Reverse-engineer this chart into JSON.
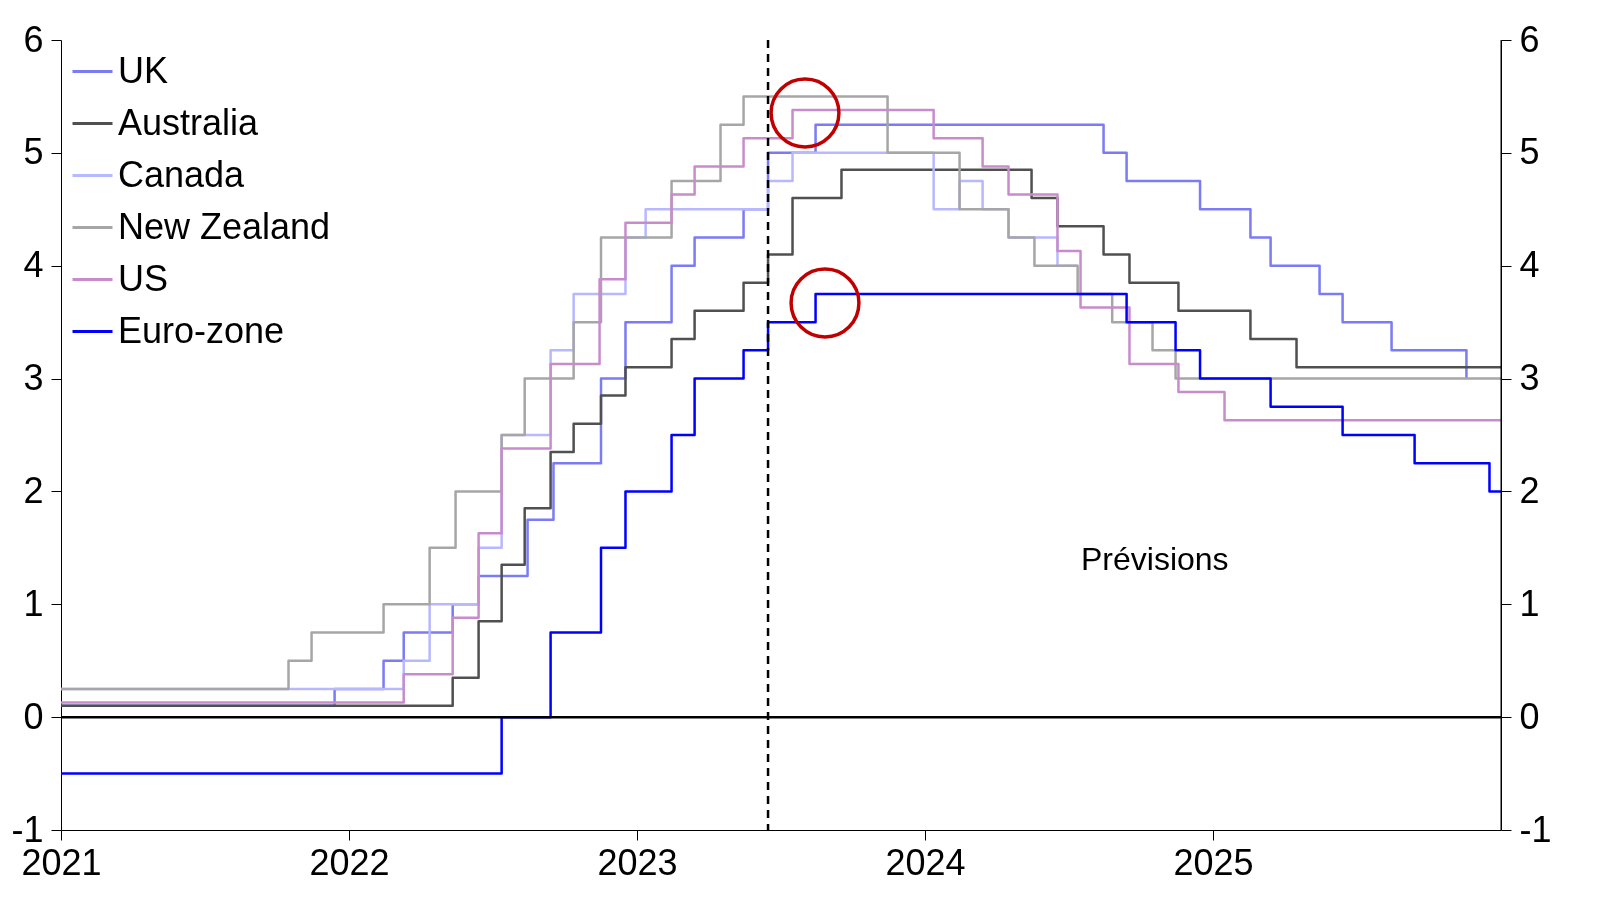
{
  "chart_data": {
    "type": "step",
    "xlim": [
      2021,
      2026
    ],
    "xticks": [
      2021,
      2022,
      2023,
      2024,
      2025
    ],
    "ylim": [
      -1,
      6
    ],
    "yticks": [
      -1,
      0,
      1,
      2,
      3,
      4,
      5,
      6
    ],
    "y2lim": [
      -1,
      6
    ],
    "y2ticks": [
      -1,
      0,
      1,
      2,
      3,
      4,
      5,
      6
    ],
    "grid": false,
    "legend": "top left",
    "line_style": "solid",
    "marker": "none",
    "annotations": [
      "Prévisions"
    ],
    "ref_lines": [
      {
        "axis": "x",
        "value": 2023.455,
        "color": "#000000",
        "line_style": "dashed"
      },
      {
        "axis": "y",
        "value": 0,
        "color": "#000000",
        "line_style": "solid"
      }
    ],
    "series": [
      {
        "name": "UK",
        "color": "#7b7bf5",
        "x": [
          2021,
          2021.95,
          2022.12,
          2022.19,
          2022.36,
          2022.45,
          2022.62,
          2022.71,
          2022.875,
          2022.96,
          2023.12,
          2023.2,
          2023.37,
          2023.455,
          2023.62,
          2024.62,
          2024.7,
          2024.955,
          2025.13,
          2025.2,
          2025.37,
          2025.45,
          2025.62,
          2025.88
        ],
        "values": [
          0.1,
          0.25,
          0.5,
          0.75,
          1.0,
          1.25,
          1.75,
          2.25,
          3.0,
          3.5,
          4.0,
          4.25,
          4.5,
          5.0,
          5.25,
          5.0,
          4.75,
          4.5,
          4.25,
          4.0,
          3.75,
          3.5,
          3.25,
          3.0
        ]
      },
      {
        "name": "Australia",
        "color": "#505050",
        "x": [
          2021,
          2022.36,
          2022.45,
          2022.53,
          2022.61,
          2022.7,
          2022.78,
          2022.875,
          2022.96,
          2023.12,
          2023.2,
          2023.37,
          2023.455,
          2023.54,
          2023.71,
          2024.37,
          2024.46,
          2024.62,
          2024.71,
          2024.88,
          2025.13,
          2025.29,
          2026
        ],
        "values": [
          0.1,
          0.35,
          0.85,
          1.35,
          1.85,
          2.35,
          2.6,
          2.85,
          3.1,
          3.35,
          3.6,
          3.85,
          4.1,
          4.6,
          4.85,
          4.6,
          4.35,
          4.1,
          3.85,
          3.6,
          3.35,
          3.1,
          3.1
        ]
      },
      {
        "name": "Canada",
        "color": "#b8b8ff",
        "x": [
          2021,
          2022.19,
          2022.28,
          2022.45,
          2022.53,
          2022.7,
          2022.78,
          2022.96,
          2023.03,
          2023.455,
          2023.54,
          2024.03,
          2024.12,
          2024.2,
          2024.29,
          2024.46,
          2024.53
        ],
        "values": [
          0.25,
          0.5,
          1.0,
          1.5,
          2.5,
          3.25,
          3.75,
          4.25,
          4.5,
          4.75,
          5.0,
          4.5,
          4.75,
          4.5,
          4.25,
          4.0,
          4.0
        ]
      },
      {
        "name": "New Zealand",
        "color": "#a6a6a6",
        "x": [
          2021,
          2021.79,
          2021.87,
          2022.12,
          2022.28,
          2022.37,
          2022.53,
          2022.61,
          2022.78,
          2022.875,
          2023.12,
          2023.29,
          2023.37,
          2023.87,
          2024.12,
          2024.29,
          2024.38,
          2024.53,
          2024.65,
          2024.79,
          2024.87,
          2026
        ],
        "values": [
          0.25,
          0.5,
          0.75,
          1.0,
          1.5,
          2.0,
          2.5,
          3.0,
          3.5,
          4.25,
          4.75,
          5.25,
          5.5,
          5.0,
          4.5,
          4.25,
          4.0,
          3.75,
          3.5,
          3.25,
          3.0,
          3.0
        ]
      },
      {
        "name": "US",
        "color": "#c88ccc",
        "x": [
          2021,
          2022.19,
          2022.36,
          2022.45,
          2022.53,
          2022.7,
          2022.87,
          2022.96,
          2023.12,
          2023.2,
          2023.37,
          2023.54,
          2024.03,
          2024.2,
          2024.29,
          2024.46,
          2024.54,
          2024.71,
          2024.88,
          2025.04,
          2026
        ],
        "values": [
          0.13,
          0.38,
          0.88,
          1.63,
          2.38,
          3.13,
          3.88,
          4.38,
          4.63,
          4.88,
          5.13,
          5.38,
          5.13,
          4.88,
          4.63,
          4.13,
          3.63,
          3.13,
          2.88,
          2.63,
          2.63
        ]
      },
      {
        "name": "Euro-zone",
        "color": "#0000ff",
        "x": [
          2021,
          2022.53,
          2022.7,
          2022.875,
          2022.96,
          2023.12,
          2023.2,
          2023.37,
          2023.455,
          2023.62,
          2024.7,
          2024.87,
          2024.955,
          2025.2,
          2025.45,
          2025.7,
          2025.96,
          2026
        ],
        "values": [
          -0.5,
          0,
          0.75,
          1.5,
          2.0,
          2.5,
          3.0,
          3.25,
          3.5,
          3.75,
          3.5,
          3.25,
          3.0,
          2.75,
          2.5,
          2.25,
          2.0,
          2.0
        ]
      }
    ]
  }
}
